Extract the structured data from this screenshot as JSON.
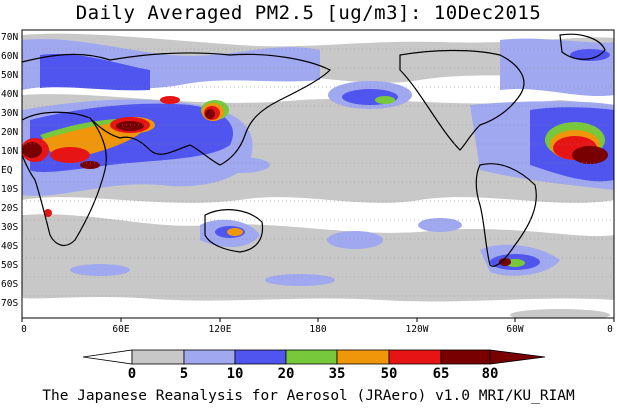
{
  "title": "Daily Averaged PM2.5 [ug/m3]: 10Dec2015",
  "footer": "The Japanese Reanalysis for Aerosol (JRAero) v1.0 MRI/KU_RIAM",
  "lat_labels": [
    "70N",
    "60N",
    "50N",
    "40N",
    "30N",
    "20N",
    "10N",
    "EQ",
    "10S",
    "20S",
    "30S",
    "40S",
    "50S",
    "60S",
    "70S"
  ],
  "lon_labels": [
    "0",
    "60E",
    "120E",
    "180",
    "120W",
    "60W",
    "0"
  ],
  "colorbar": {
    "labels": [
      "0",
      "5",
      "10",
      "20",
      "35",
      "50",
      "65",
      "80"
    ],
    "colors": [
      "#ffffff",
      "#c8c8c8",
      "#a0a8f0",
      "#4f55ee",
      "#78c83c",
      "#f0960a",
      "#e61414",
      "#780000"
    ]
  }
}
